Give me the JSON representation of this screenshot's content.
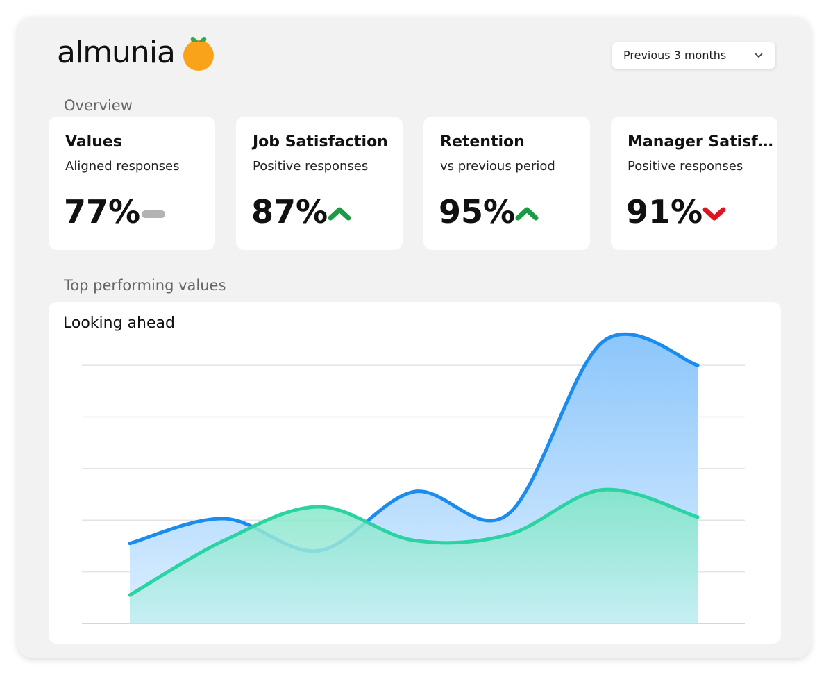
{
  "header": {
    "brand": "almunia",
    "period": "Previous 3 months"
  },
  "overview": {
    "heading": "Overview",
    "cards": [
      {
        "title": "Values",
        "subtitle": "Aligned responses",
        "value": "77%"
      },
      {
        "title": "Job Satisfaction",
        "subtitle": "Positive responses",
        "value": "87%"
      },
      {
        "title": "Retention",
        "subtitle": "vs previous period",
        "value": "95%"
      },
      {
        "title": "Manager Satisf…",
        "subtitle": "Positive responses",
        "value": "91%"
      }
    ]
  },
  "section_heading": "Top performing values",
  "chart_data": {
    "type": "area",
    "title": "Looking ahead",
    "categories": [
      null,
      null,
      null,
      null,
      null,
      null,
      null
    ],
    "series": [
      {
        "color": "#1a8cf0",
        "values": [
          1.55,
          2.03,
          1.41,
          2.55,
          2.12,
          5.46,
          5.0
        ]
      },
      {
        "color": "#2cd3a2",
        "values": [
          0.55,
          1.61,
          2.26,
          1.61,
          1.72,
          2.59,
          2.06
        ]
      }
    ],
    "ylim": [
      0,
      5.5
    ],
    "yticks": [
      0,
      1,
      2,
      3,
      4,
      5
    ],
    "grid": true
  }
}
